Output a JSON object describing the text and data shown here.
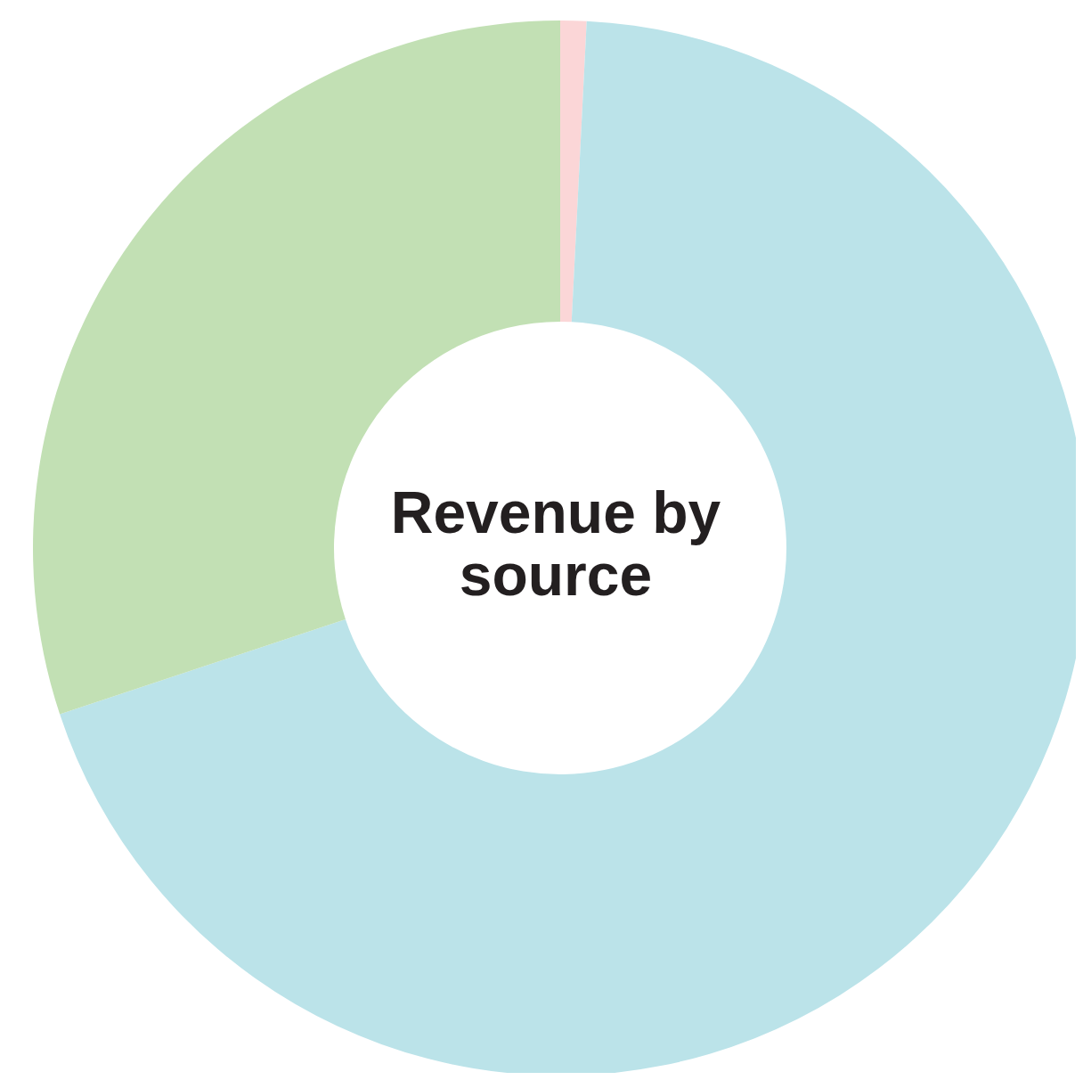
{
  "chart_data": {
    "type": "donut",
    "title": "Revenue by source",
    "categories": [
      null,
      null,
      null
    ],
    "values": [
      0.8,
      69.1,
      30.1
    ],
    "colors": [
      "#fbd6d7",
      "#bbe3e9",
      "#c2e0b4"
    ]
  }
}
